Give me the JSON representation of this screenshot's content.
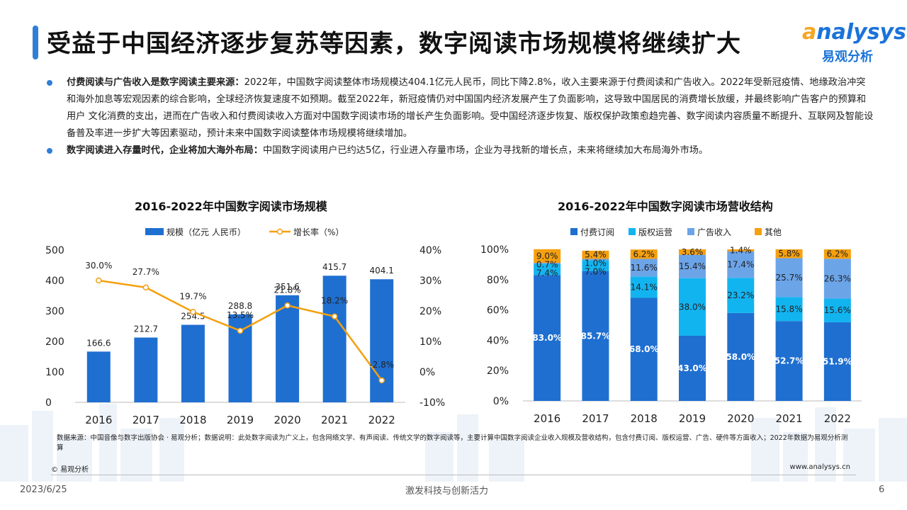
{
  "header": {
    "title": "受益于中国经济逐步复苏等因素，数字阅读市场规模将继续扩大",
    "logo_en_a": "a",
    "logo_en_rest": "nalysys",
    "logo_cn": "易观分析"
  },
  "bullets": [
    {
      "bold": "付费阅读与广告收入是数字阅读主要来源：",
      "text": "2022年，中国数字阅读整体市场规模达404.1亿元人民币，同比下降2.8%，收入主要来源于付费阅读和广告收入。2022年受新冠疫情、地缘政治冲突和海外加息等宏观因素的综合影响，全球经济恢复速度不如预期。截至2022年，新冠疫情仍对中国国内经济发展产生了负面影响，这导致中国居民的消费增长放缓，并最终影响广告客户的预算和用户 文化消费的支出，进而在广告收入和付费阅读收入方面对中国数字阅读市场的增长产生负面影响。受中国经济逐步恢复、版权保护政策愈趋完善、数字阅读内容质量不断提升、互联网及智能设备普及率进一步扩大等因素驱动，预计未来中国数字阅读整体市场规模将继续增加。"
    },
    {
      "bold": "数字阅读进入存量时代，企业将加大海外布局：",
      "text": "中国数字阅读用户已约达5亿，行业进入存量市场，企业为寻找新的增长点，未来将继续加大布局海外市场。"
    }
  ],
  "chart_data": [
    {
      "type": "bar",
      "title": "2016-2022年中国数字阅读市场规模",
      "categories": [
        "2016",
        "2017",
        "2018",
        "2019",
        "2020",
        "2021",
        "2022"
      ],
      "series": [
        {
          "name": "规模（亿元 人民币）",
          "type": "bar",
          "axis": "left",
          "values": [
            166.6,
            212.7,
            254.5,
            288.8,
            351.6,
            415.7,
            404.1
          ],
          "labels": [
            "166.6",
            "212.7",
            "254.5",
            "288.8",
            "351.6",
            "415.7",
            "404.1"
          ]
        },
        {
          "name": "增长率（%）",
          "type": "line",
          "axis": "right",
          "values": [
            30.0,
            27.7,
            19.7,
            13.5,
            21.8,
            18.2,
            -2.8
          ],
          "labels": [
            "30.0%",
            "27.7%",
            "19.7%",
            "13.5%",
            "21.8%",
            "18.2%",
            "-2.8%"
          ]
        }
      ],
      "ylim_left": [
        0,
        500
      ],
      "yticks_left": [
        "0",
        "100",
        "200",
        "300",
        "400",
        "500"
      ],
      "ylim_right": [
        -10,
        40
      ],
      "yticks_right": [
        "-10%",
        "0%",
        "10%",
        "20%",
        "30%",
        "40%"
      ],
      "legend_position": "top-left",
      "colors": {
        "bar": "#1f6fd1",
        "line": "#f5a00f"
      }
    },
    {
      "type": "bar",
      "stacked": true,
      "title": "2016-2022年中国数字阅读市场营收结构",
      "categories": [
        "2016",
        "2017",
        "2018",
        "2019",
        "2020",
        "2021",
        "2022"
      ],
      "series": [
        {
          "name": "付费订阅",
          "values": [
            83.0,
            85.7,
            68.0,
            43.0,
            58.0,
            52.7,
            51.9
          ],
          "labels": [
            "83.0%",
            "85.7%",
            "68.0%",
            "43.0%",
            "58.0%",
            "52.7%",
            "51.9%"
          ]
        },
        {
          "name": "版权运营",
          "values": [
            7.4,
            7.0,
            14.1,
            38.0,
            23.2,
            15.8,
            15.6
          ],
          "labels": [
            "7.4%",
            "7.0%",
            "14.1%",
            "38.0%",
            "23.2%",
            "15.8%",
            "15.6%"
          ]
        },
        {
          "name": "广告收入",
          "values": [
            0.7,
            1.0,
            11.6,
            15.4,
            17.4,
            25.7,
            26.3
          ],
          "labels": [
            "0.7%",
            "1.0%",
            "11.6%",
            "15.4%",
            "17.4%",
            "25.7%",
            "26.3%"
          ]
        },
        {
          "name": "其他",
          "values": [
            9.0,
            5.4,
            6.2,
            3.6,
            1.4,
            5.8,
            6.2
          ],
          "labels": [
            "9.0%",
            "5.4%",
            "6.2%",
            "3.6%",
            "1.4%",
            "5.8%",
            "6.2%"
          ]
        }
      ],
      "ylim": [
        0,
        100
      ],
      "yticks": [
        "0%",
        "20%",
        "40%",
        "60%",
        "80%",
        "100%"
      ],
      "legend_position": "top",
      "colors": [
        "#1f6fd1",
        "#12b4f0",
        "#6ca4e8",
        "#f5a00f"
      ]
    }
  ],
  "footer": {
    "note": "数据来源：中国音像与数字出版协会 · 易观分析；数据说明：此处数字阅读为广义上，包含网络文学、有声阅读、传统文学的数字阅读等，主要计算中国数字阅读企业收入规模及营收结构，包含付费订阅、版权运营、广告、硬件等方面收入；2022年数据为易观分析测算",
    "copyright": "© 易观分析",
    "website": "www.analysys.cn",
    "date": "2023/6/25",
    "slogan": "激发科技与创新活力",
    "page": "6"
  }
}
